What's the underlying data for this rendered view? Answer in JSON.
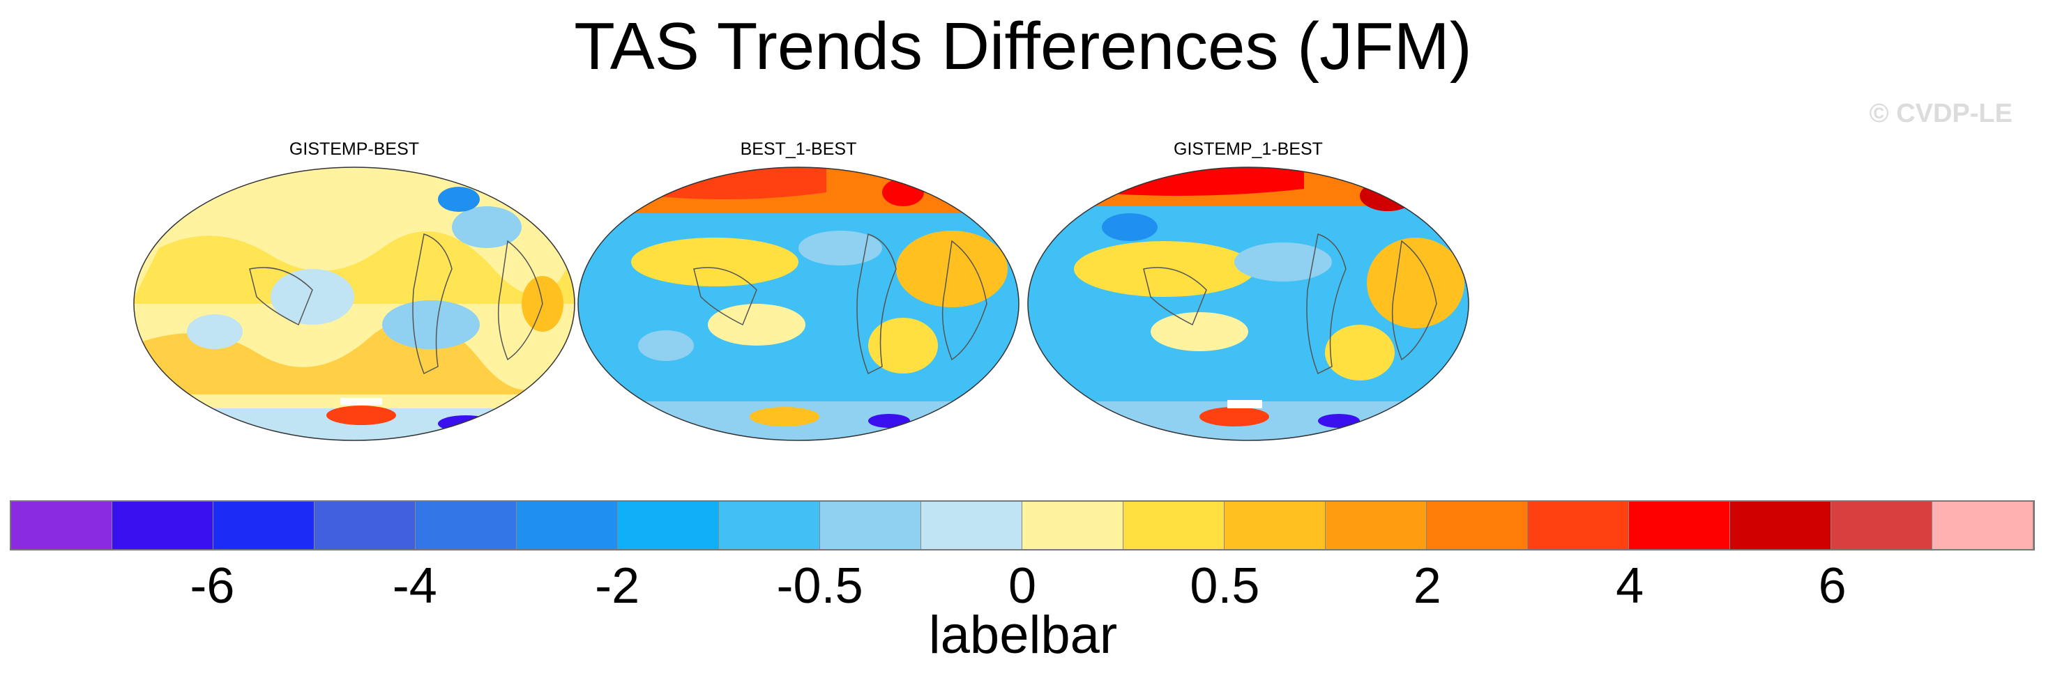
{
  "title": "TAS Trends Differences (JFM)",
  "watermark": "© CVDP-LE",
  "chart_data": {
    "type": "heatmap",
    "projection": "robinson (pacific-centered)",
    "title": "TAS Trends Differences (JFM)",
    "panels": [
      {
        "label": "GISTEMP-BEST",
        "dominant_sign": "positive, mixed",
        "hotspots": [
          "Greenland (blue)",
          "Antarctica (red/blue)"
        ]
      },
      {
        "label": "BEST_1-BEST",
        "dominant_sign": "negative over oceans",
        "hotspots": [
          "Arctic (red)",
          "North Atlantic (orange)"
        ]
      },
      {
        "label": "GISTEMP_1-BEST",
        "dominant_sign": "negative over oceans",
        "hotspots": [
          "Arctic (red)",
          "Atlantic (orange)"
        ]
      }
    ],
    "labelbar": {
      "title": "labelbar",
      "tick_labels": [
        "-6",
        "-4",
        "-2",
        "-0.5",
        "0",
        "0.5",
        "2",
        "4",
        "6"
      ],
      "colors": [
        "#8a2be2",
        "#3a10f0",
        "#1c2cf4",
        "#4060e0",
        "#3376e8",
        "#2090f0",
        "#10b0f8",
        "#40c0f4",
        "#90d0f0",
        "#c0e4f4",
        "#fff3a0",
        "#ffe040",
        "#ffc020",
        "#ff9c10",
        "#ff7c08",
        "#ff4010",
        "#ff0000",
        "#d00000",
        "#d84040",
        "#ffb0b0"
      ],
      "tick_positions_swatch_boundary": [
        2,
        4,
        6,
        8,
        10,
        12,
        14,
        16,
        18
      ]
    }
  }
}
